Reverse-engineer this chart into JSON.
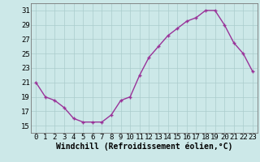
{
  "x": [
    0,
    1,
    2,
    3,
    4,
    5,
    6,
    7,
    8,
    9,
    10,
    11,
    12,
    13,
    14,
    15,
    16,
    17,
    18,
    19,
    20,
    21,
    22,
    23
  ],
  "y": [
    21,
    19,
    18.5,
    17.5,
    16,
    15.5,
    15.5,
    15.5,
    16.5,
    18.5,
    19,
    22,
    24.5,
    26,
    27.5,
    28.5,
    29.5,
    30,
    31,
    31,
    29,
    26.5,
    25,
    22.5
  ],
  "line_color": "#993399",
  "marker_color": "#993399",
  "bg_color": "#cce8e8",
  "grid_color": "#aacccc",
  "xlabel": "Windchill (Refroidissement éolien,°C)",
  "ylim": [
    14.0,
    32.0
  ],
  "yticks": [
    15,
    17,
    19,
    21,
    23,
    25,
    27,
    29,
    31
  ],
  "xticks": [
    0,
    1,
    2,
    3,
    4,
    5,
    6,
    7,
    8,
    9,
    10,
    11,
    12,
    13,
    14,
    15,
    16,
    17,
    18,
    19,
    20,
    21,
    22,
    23
  ],
  "axis_fontsize": 7,
  "tick_fontsize": 6.5
}
